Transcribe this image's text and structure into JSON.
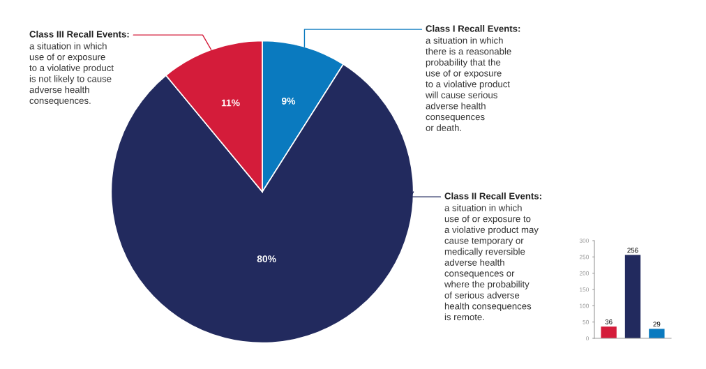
{
  "chart_data": [
    {
      "type": "pie",
      "categories": [
        "Class I Recall Events:\na situation in which\nthere is a reasonable\nprobability that the\nuse of or exposure\nto a violative product\nwill cause serious\nadverse health\nconsequences\nor death.",
        "Class II Recall Events:\na situation in which\nuse of or exposure to\na violative product may\ncause temporary or\nmedically reversible\nadverse health\nconsequences or\nwhere the probability\nof serious adverse\nhealth consequences\nis remote.",
        "Class III Recall Events:\na situation in which\nuse of or exposure\nto a violative product\nis not likely to cause\nadverse health\nconsequences."
      ],
      "values": [
        9,
        80,
        11
      ],
      "colors": [
        "#0a7abf",
        "#222a5e",
        "#d41c3a"
      ],
      "value_labels": [
        "9%",
        "80%",
        "11%"
      ]
    },
    {
      "type": "bar",
      "categories": [
        null,
        null,
        null
      ],
      "values": [
        36,
        256,
        29
      ],
      "colors": [
        "#d41c3a",
        "#222a5e",
        "#0a7abf"
      ],
      "ylim": [
        0,
        300
      ],
      "yticks": [
        0,
        50,
        100,
        150,
        200,
        250,
        300
      ],
      "data_labels": true,
      "tick_labels": "y"
    }
  ]
}
